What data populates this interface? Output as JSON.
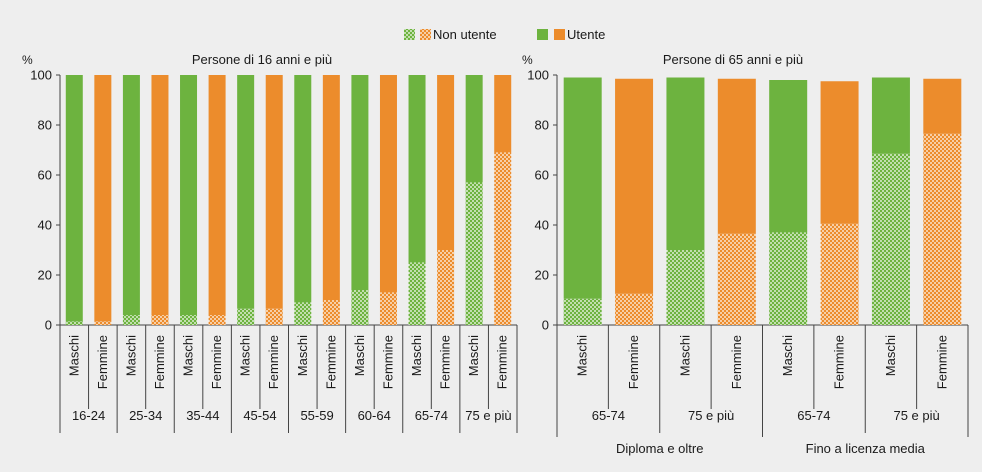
{
  "legend": {
    "non_user": "Non utente",
    "user": "Utente"
  },
  "colors": {
    "male": "#6db33f",
    "female": "#ec8c2c",
    "background": "#eeeeee",
    "axis": "#444444",
    "dots": "#ffffff"
  },
  "chart_data": [
    {
      "type": "bar",
      "stacked": true,
      "title": "Persone di 16 anni e più",
      "ylabel": "%",
      "ylim": [
        0,
        100
      ],
      "yticks": [
        0,
        20,
        40,
        60,
        80,
        100
      ],
      "grid": false,
      "legend_position": "top",
      "groups": [
        "16-24",
        "25-34",
        "35-44",
        "45-54",
        "55-59",
        "60-64",
        "65-74",
        "75 e più"
      ],
      "categories": [
        "Maschi",
        "Femmine"
      ],
      "series": [
        {
          "name": "Non utente",
          "values": [
            [
              1.5,
              1.5
            ],
            [
              4,
              4
            ],
            [
              4,
              4
            ],
            [
              6.5,
              6.5
            ],
            [
              9,
              10
            ],
            [
              14,
              13
            ],
            [
              25,
              30
            ],
            [
              57,
              69
            ]
          ]
        },
        {
          "name": "Utente",
          "values": [
            [
              98.5,
              98.5
            ],
            [
              96,
              96
            ],
            [
              96,
              96
            ],
            [
              93.5,
              93.5
            ],
            [
              91,
              90
            ],
            [
              86,
              87
            ],
            [
              75,
              70
            ],
            [
              43,
              31
            ]
          ]
        }
      ]
    },
    {
      "type": "bar",
      "stacked": true,
      "title": "Persone di 65 anni e più",
      "ylabel": "%",
      "ylim": [
        0,
        100
      ],
      "yticks": [
        0,
        20,
        40,
        60,
        80,
        100
      ],
      "grid": false,
      "legend_position": "top",
      "supergroups": [
        {
          "label": "Diploma e oltre",
          "groups": [
            "65-74",
            "75 e più"
          ]
        },
        {
          "label": "Fino a licenza media",
          "groups": [
            "65-74",
            "75 e più"
          ]
        }
      ],
      "categories": [
        "Maschi",
        "Femmine"
      ],
      "series": [
        {
          "name": "Non utente",
          "values": [
            [
              10.5,
              12.5
            ],
            [
              30,
              36.5
            ],
            [
              37,
              40.5
            ],
            [
              68.5,
              76.5
            ]
          ]
        },
        {
          "name": "Utente",
          "values": [
            [
              88.5,
              86
            ],
            [
              69,
              62
            ],
            [
              61,
              57
            ],
            [
              30.5,
              22
            ]
          ]
        }
      ]
    }
  ]
}
